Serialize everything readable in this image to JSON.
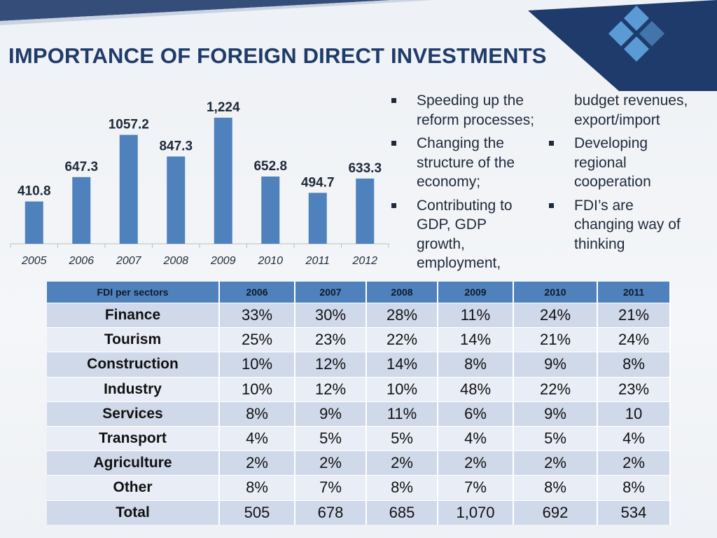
{
  "slide": {
    "title": "IMPORTANCE  OF FOREIGN DIRECT INVESTMENTS"
  },
  "colors": {
    "bar": "#4f81bd",
    "title": "#1f3b6b",
    "corner": "#1f3b6b",
    "logo": "#5b9bd5",
    "header": "#4f81bd"
  },
  "chart_data": {
    "type": "bar",
    "categories": [
      "2005",
      "2006",
      "2007",
      "2008",
      "2009",
      "2010",
      "2011",
      "2012"
    ],
    "values": [
      410.8,
      647.3,
      1057.2,
      847.3,
      1224,
      652.8,
      494.7,
      633.3
    ],
    "data_labels": [
      "410.8",
      "647.3",
      "1057.2",
      "847.3",
      "1,224",
      "652.8",
      "494.7",
      "633.3"
    ],
    "title": "",
    "xlabel": "",
    "ylabel": "",
    "ylim": [
      0,
      1224
    ],
    "grid": false,
    "legend": "none"
  },
  "bullets": {
    "col1": [
      {
        "lines": [
          "Speeding up the",
          "reform processes;"
        ],
        "bullet": true
      },
      {
        "lines": [
          "Changing the",
          "structure of the",
          "economy;"
        ],
        "bullet": true
      },
      {
        "lines": [
          "Contributing to",
          "GDP, GDP",
          "growth,",
          "employment,"
        ],
        "bullet": true
      }
    ],
    "col2": [
      {
        "lines": [
          "budget revenues,",
          "export/import"
        ],
        "bullet": false
      },
      {
        "lines": [
          "Developing",
          "regional",
          "cooperation"
        ],
        "bullet": true
      },
      {
        "lines": [
          "FDI’s are",
          "changing way of",
          "thinking"
        ],
        "bullet": true
      }
    ]
  },
  "table": {
    "header": [
      "FDI per sectors",
      "2006",
      "2007",
      "2008",
      "2009",
      "2010",
      "2011"
    ],
    "rows": [
      [
        "Finance",
        "33%",
        "30%",
        "28%",
        "11%",
        "24%",
        "21%"
      ],
      [
        "Tourism",
        "25%",
        "23%",
        "22%",
        "14%",
        "21%",
        "24%"
      ],
      [
        "Construction",
        "10%",
        "12%",
        "14%",
        "8%",
        "9%",
        "8%"
      ],
      [
        "Industry",
        "10%",
        "12%",
        "10%",
        "48%",
        "22%",
        "23%"
      ],
      [
        "Services",
        "8%",
        "9%",
        "11%",
        "6%",
        "9%",
        "10"
      ],
      [
        "Transport",
        "4%",
        "5%",
        "5%",
        "4%",
        "5%",
        "4%"
      ],
      [
        "Agriculture",
        "2%",
        "2%",
        "2%",
        "2%",
        "2%",
        "2%"
      ],
      [
        "Other",
        "8%",
        "7%",
        "8%",
        "7%",
        "8%",
        "8%"
      ],
      [
        "Total",
        "505",
        "678",
        "685",
        "1,070",
        "692",
        "534"
      ]
    ]
  }
}
